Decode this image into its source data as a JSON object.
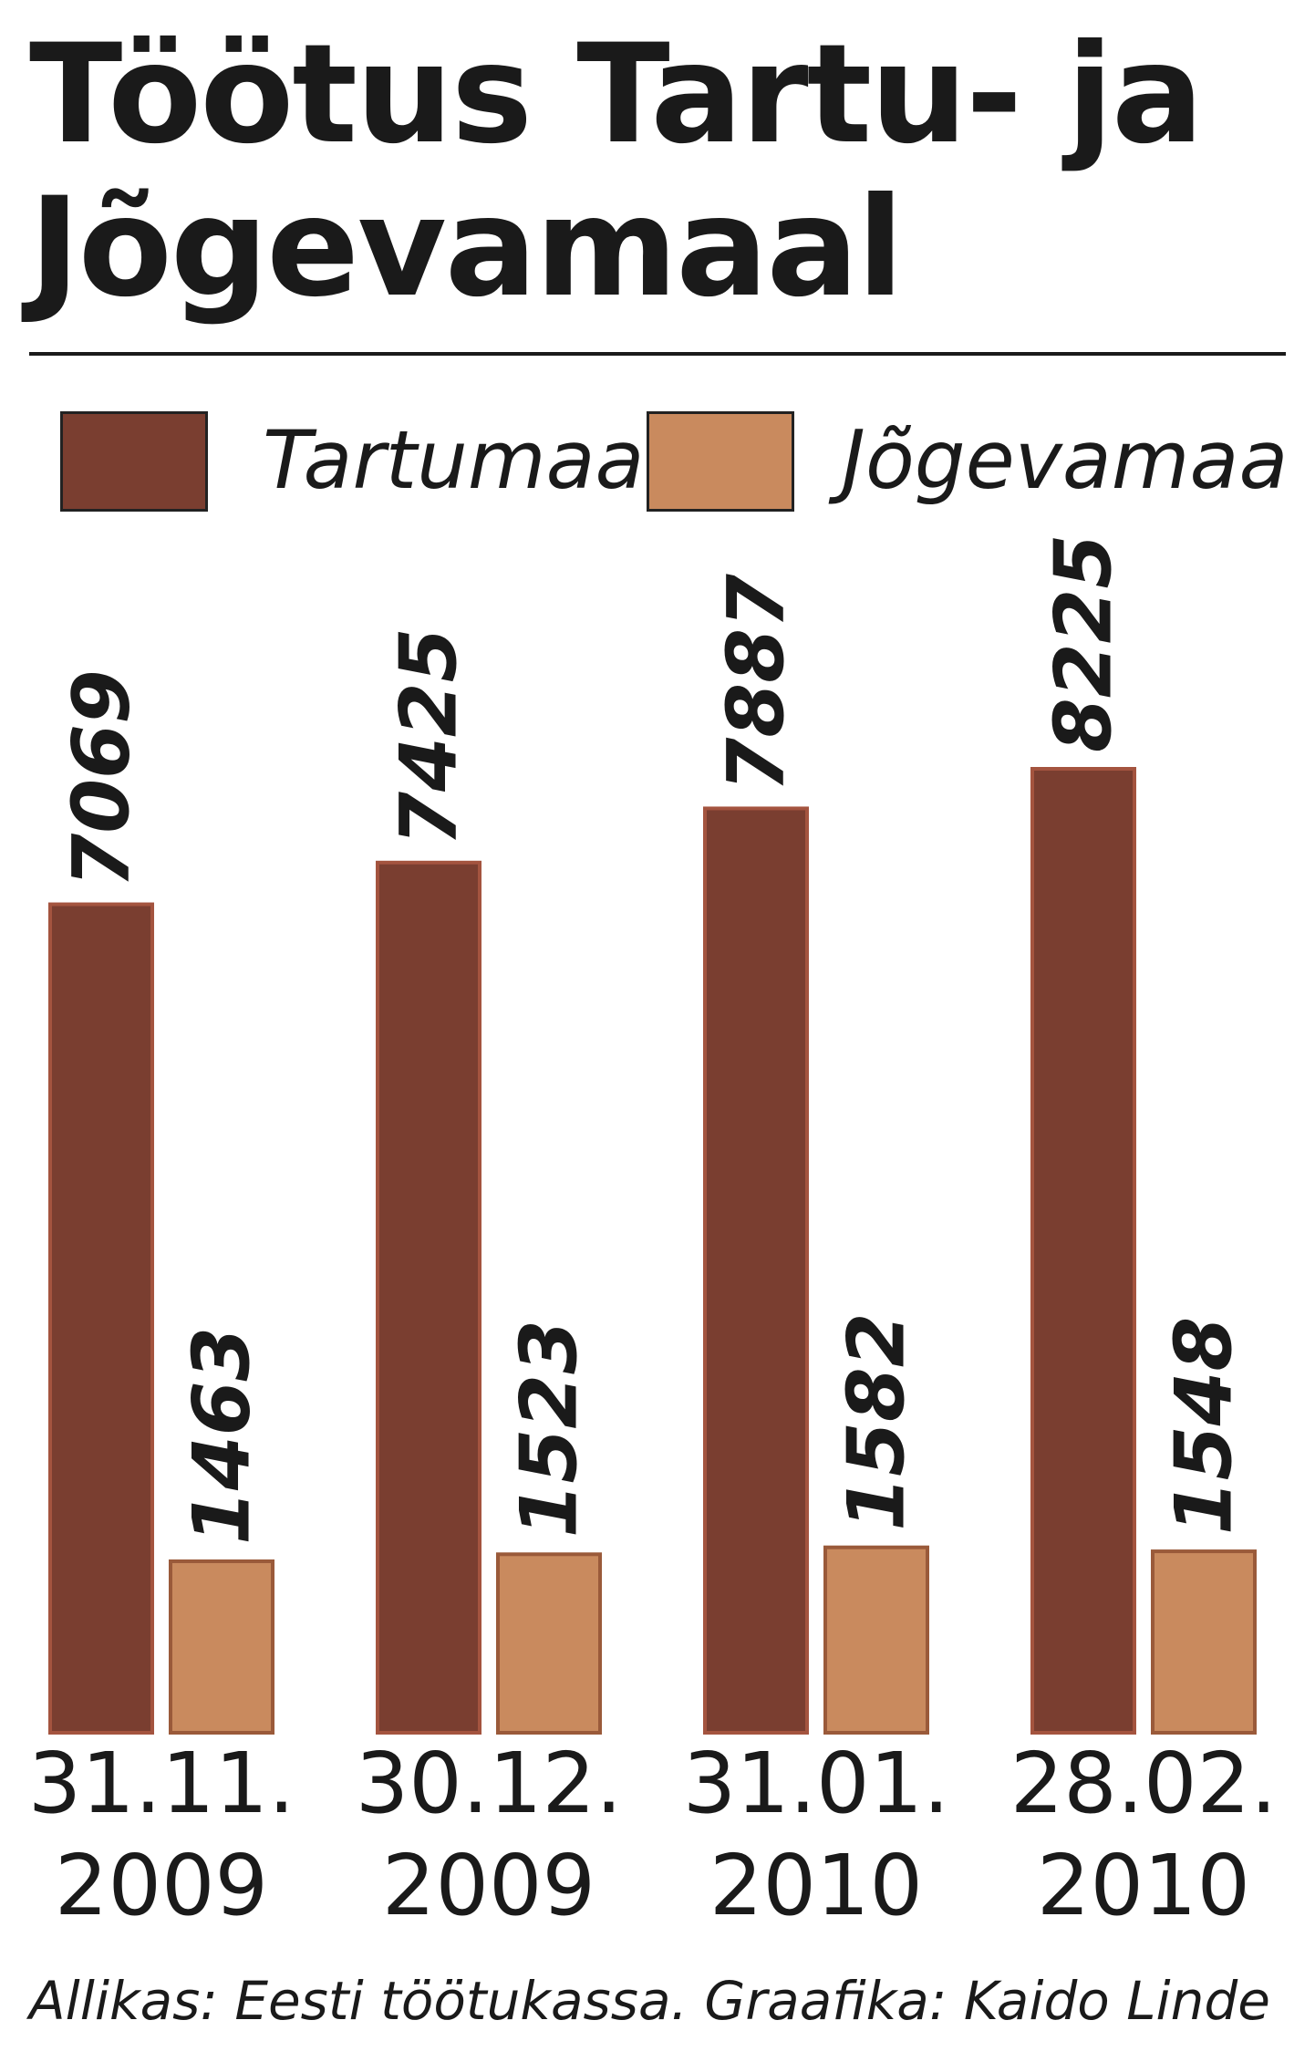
{
  "chart_data": {
    "type": "bar",
    "title": "Töötus Tartu- ja Jõgevamaal",
    "categories": [
      "31.11. 2009",
      "30.12. 2009",
      "31.01. 2010",
      "28.02. 2010"
    ],
    "series": [
      {
        "name": "Tartumaa",
        "color": "#7a3e30",
        "values": [
          7069,
          7425,
          7887,
          8225
        ]
      },
      {
        "name": "Jõgevamaa",
        "color": "#c98a5e",
        "values": [
          1463,
          1523,
          1582,
          1548
        ]
      }
    ],
    "source": "Allikas: Eesti töötukassa. Graafika: Kaido Linde"
  }
}
